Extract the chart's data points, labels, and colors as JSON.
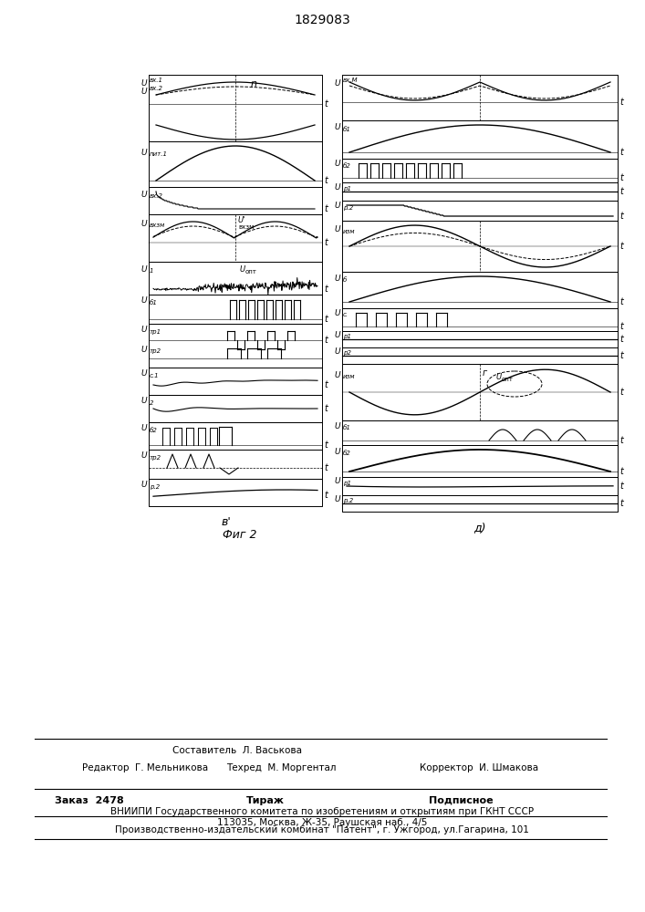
{
  "patent_number": "1829083",
  "fig_label": "Фиг 2",
  "subfig_left": "в'",
  "subfig_right": "д)",
  "footer_editor": "Редактор  Г. Мельникова",
  "footer_composer": "Составитель  Л. Васькова",
  "footer_techred": "Техред  М. Моргентал",
  "footer_corrector": "Корректор  И. Шмакова",
  "footer_order": "Заказ  2478",
  "footer_tirazh": "Тираж",
  "footer_podpis": "Подписное",
  "footer_vniip": "ВНИИПИ Государственного комитета по изобретениям и открытиям при ГКНТ СССР",
  "footer_addr": "113035, Москва, Ж-35, Раушская наб., 4/5",
  "footer_patent": "Производственно-издательский комбинат \"Патент\", г. Ужгород, ул.Гагарина, 101"
}
